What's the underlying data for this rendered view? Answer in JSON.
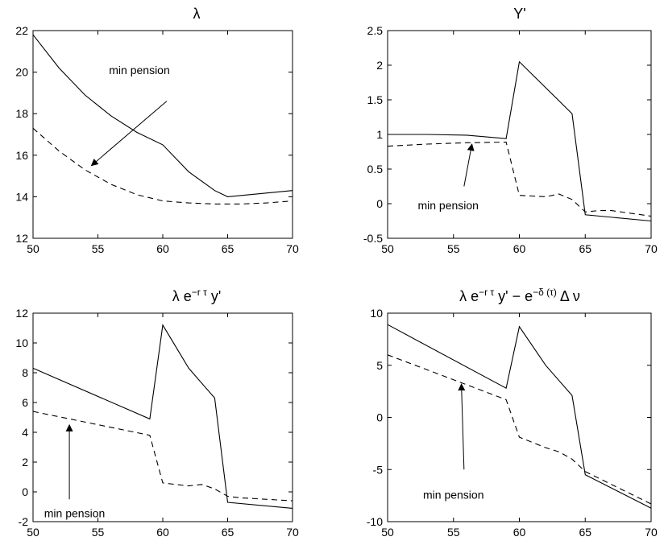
{
  "chart_data": [
    {
      "type": "line",
      "title": "λ",
      "xlim": [
        50,
        70
      ],
      "ylim": [
        12,
        22
      ],
      "xticks": [
        "50",
        "55",
        "60",
        "65",
        "70"
      ],
      "yticks": [
        "12",
        "14",
        "16",
        "18",
        "20",
        "22"
      ],
      "grid": false,
      "series": [
        {
          "style": "solid",
          "x": [
            50,
            52,
            54,
            56,
            58,
            60,
            62,
            64,
            65,
            70
          ],
          "y": [
            21.8,
            20.2,
            18.9,
            17.9,
            17.1,
            16.5,
            15.2,
            14.3,
            14.0,
            14.3
          ]
        },
        {
          "style": "dashed",
          "x": [
            50,
            52,
            54,
            56,
            58,
            60,
            62,
            64,
            66,
            68,
            70
          ],
          "y": [
            17.3,
            16.2,
            15.3,
            14.6,
            14.1,
            13.8,
            13.7,
            13.65,
            13.65,
            13.7,
            13.8
          ]
        }
      ],
      "annotation": {
        "text": "min pension",
        "text_at": [
          58.2,
          19.9
        ],
        "arrow_from": [
          60.3,
          18.6
        ],
        "arrow_to": [
          54.5,
          15.5
        ]
      }
    },
    {
      "type": "line",
      "title": "Y'",
      "xlim": [
        50,
        70
      ],
      "ylim": [
        -0.5,
        2.5
      ],
      "xticks": [
        "50",
        "55",
        "60",
        "65",
        "70"
      ],
      "yticks": [
        "-0.5",
        "0",
        "0.5",
        "1",
        "1.5",
        "2",
        "2.5"
      ],
      "grid": false,
      "series": [
        {
          "style": "solid",
          "x": [
            50,
            53,
            56,
            59,
            60,
            64,
            65,
            70
          ],
          "y": [
            1.0,
            1.0,
            0.99,
            0.94,
            2.05,
            1.3,
            -0.16,
            -0.25
          ]
        },
        {
          "style": "dashed",
          "x": [
            50,
            53,
            56,
            59,
            60,
            61,
            62,
            63,
            64,
            65,
            66,
            67,
            70
          ],
          "y": [
            0.83,
            0.86,
            0.88,
            0.89,
            0.12,
            0.11,
            0.1,
            0.14,
            0.06,
            -0.12,
            -0.1,
            -0.1,
            -0.18
          ]
        }
      ],
      "annotation": {
        "text": "min pension",
        "text_at": [
          54.6,
          -0.08
        ],
        "arrow_from": [
          55.8,
          0.25
        ],
        "arrow_to": [
          56.4,
          0.86
        ]
      }
    },
    {
      "type": "line",
      "title": "λ e",
      "title_sup": "−r τ",
      "title_tail": " y'",
      "xlim": [
        50,
        70
      ],
      "ylim": [
        -2,
        12
      ],
      "xticks": [
        "50",
        "55",
        "60",
        "65",
        "70"
      ],
      "yticks": [
        "-2",
        "0",
        "2",
        "4",
        "6",
        "8",
        "10",
        "12"
      ],
      "grid": false,
      "series": [
        {
          "style": "solid",
          "x": [
            50,
            59,
            60,
            62,
            64,
            65,
            70
          ],
          "y": [
            8.3,
            4.9,
            11.2,
            8.3,
            6.3,
            -0.7,
            -1.1
          ]
        },
        {
          "style": "dashed",
          "x": [
            50,
            59,
            60,
            61,
            62,
            63,
            64,
            65,
            66,
            70
          ],
          "y": [
            5.4,
            3.8,
            0.6,
            0.5,
            0.4,
            0.5,
            0.2,
            -0.3,
            -0.4,
            -0.6
          ]
        }
      ],
      "annotation": {
        "text": "min pension",
        "text_at": [
          53.2,
          -1.7
        ],
        "arrow_from": [
          52.8,
          -0.5
        ],
        "arrow_to": [
          52.8,
          4.5
        ]
      }
    },
    {
      "type": "line",
      "title": "λ e",
      "title_sup": "−r τ",
      "title_tail": " y' − e",
      "title_sup2": "−δ (τ)",
      "title_tail2": " Δ ν",
      "xlim": [
        50,
        70
      ],
      "ylim": [
        -10,
        10
      ],
      "xticks": [
        "50",
        "55",
        "60",
        "65",
        "70"
      ],
      "yticks": [
        "-10",
        "-5",
        "0",
        "5",
        "10"
      ],
      "grid": false,
      "series": [
        {
          "style": "solid",
          "x": [
            50,
            59,
            60,
            62,
            64,
            65,
            70
          ],
          "y": [
            8.9,
            2.8,
            8.7,
            5.0,
            2.1,
            -5.5,
            -8.7
          ]
        },
        {
          "style": "dashed",
          "x": [
            50,
            59,
            60,
            62,
            63,
            64,
            65,
            70
          ],
          "y": [
            6.0,
            1.7,
            -1.9,
            -2.9,
            -3.3,
            -4.0,
            -5.2,
            -8.3
          ]
        }
      ],
      "annotation": {
        "text": "min pension",
        "text_at": [
          55.0,
          -7.8
        ],
        "arrow_from": [
          55.8,
          -5.0
        ],
        "arrow_to": [
          55.6,
          3.2
        ]
      }
    }
  ]
}
